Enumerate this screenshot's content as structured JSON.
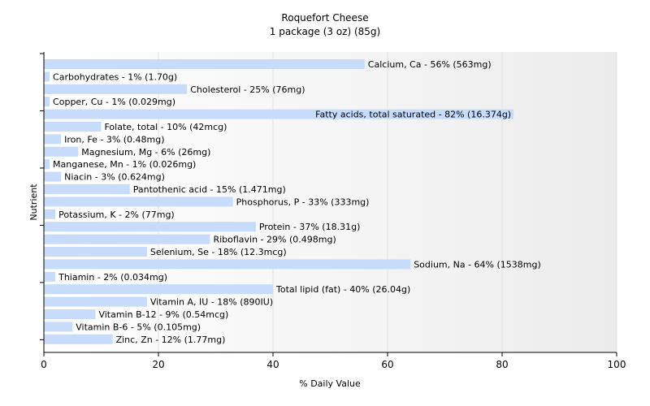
{
  "chart_data": {
    "type": "bar",
    "orientation": "horizontal",
    "title": "Roquefort Cheese",
    "subtitle": "1 package (3 oz) (85g)",
    "xlabel": "% Daily Value",
    "ylabel": "Nutrient",
    "xlim": [
      0,
      100
    ],
    "xticks": [
      "0",
      "20",
      "40",
      "60",
      "80",
      "100"
    ],
    "grid": true,
    "bar_color": "#c6dcfa",
    "categories": [
      "Calcium, Ca",
      "Carbohydrates",
      "Cholesterol",
      "Copper, Cu",
      "Fatty acids, total saturated",
      "Folate, total",
      "Iron, Fe",
      "Magnesium, Mg",
      "Manganese, Mn",
      "Niacin",
      "Pantothenic acid",
      "Phosphorus, P",
      "Potassium, K",
      "Protein",
      "Riboflavin",
      "Selenium, Se",
      "Sodium, Na",
      "Thiamin",
      "Total lipid (fat)",
      "Vitamin A, IU",
      "Vitamin B-12",
      "Vitamin B-6",
      "Zinc, Zn"
    ],
    "values": [
      56,
      1,
      25,
      1,
      82,
      10,
      3,
      6,
      1,
      3,
      15,
      33,
      2,
      37,
      29,
      18,
      64,
      2,
      40,
      18,
      9,
      5,
      12
    ],
    "labels": [
      "Calcium, Ca - 56% (563mg)",
      "Carbohydrates - 1% (1.70g)",
      "Cholesterol - 25% (76mg)",
      "Copper, Cu - 1% (0.029mg)",
      "Fatty acids, total saturated - 82% (16.374g)",
      "Folate, total - 10% (42mcg)",
      "Iron, Fe - 3% (0.48mg)",
      "Magnesium, Mg - 6% (26mg)",
      "Manganese, Mn - 1% (0.026mg)",
      "Niacin - 3% (0.624mg)",
      "Pantothenic acid - 15% (1.471mg)",
      "Phosphorus, P - 33% (333mg)",
      "Potassium, K - 2% (77mg)",
      "Protein - 37% (18.31g)",
      "Riboflavin - 29% (0.498mg)",
      "Selenium, Se - 18% (12.3mcg)",
      "Sodium, Na - 64% (1538mg)",
      "Thiamin - 2% (0.034mg)",
      "Total lipid (fat) - 40% (26.04g)",
      "Vitamin A, IU - 18% (890IU)",
      "Vitamin B-12 - 9% (0.54mcg)",
      "Vitamin B-6 - 5% (0.105mg)",
      "Zinc, Zn - 12% (1.77mg)"
    ]
  }
}
